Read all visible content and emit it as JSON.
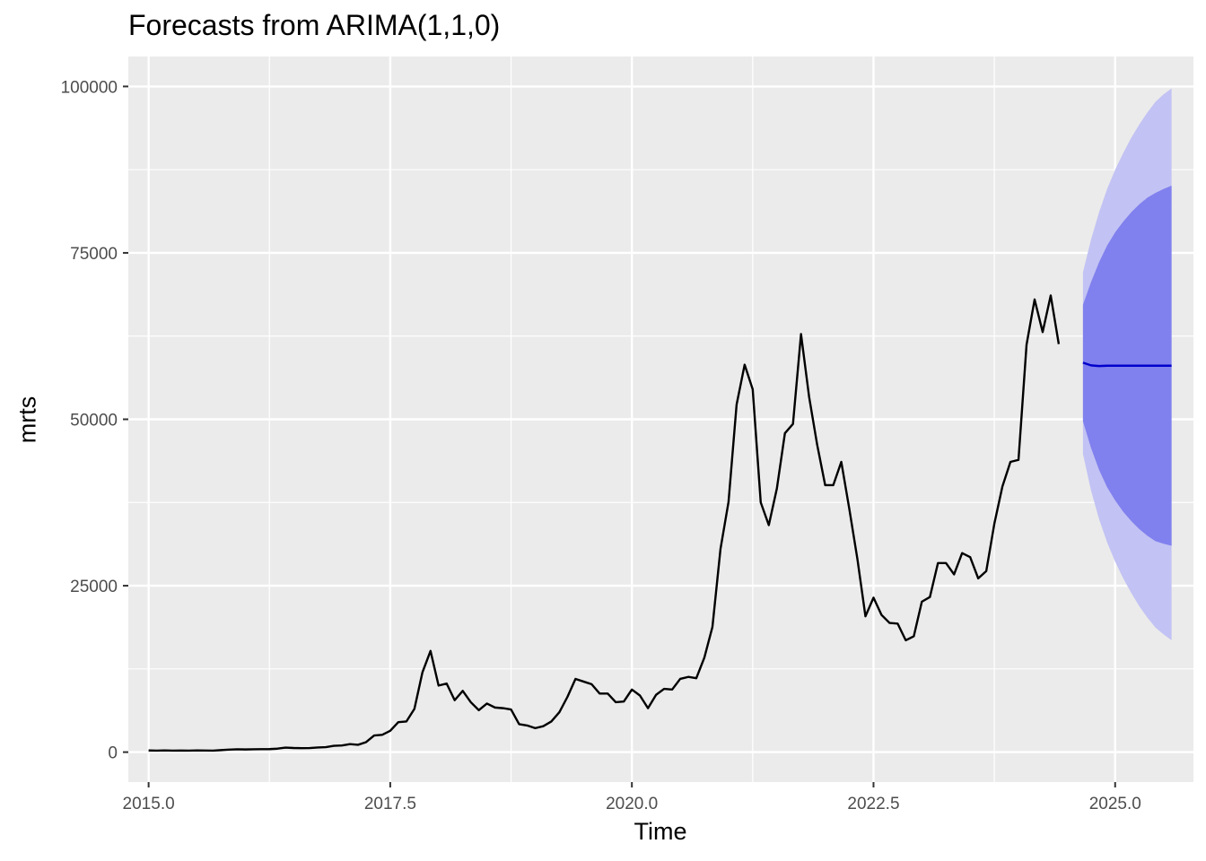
{
  "chart_data": {
    "type": "line",
    "title": "Forecasts from ARIMA(1,1,0)",
    "xlabel": "Time",
    "ylabel": "mrts",
    "xlim": [
      2014.79,
      2025.81
    ],
    "ylim": [
      -4500,
      104500
    ],
    "x_ticks": [
      2015.0,
      2017.5,
      2020.0,
      2022.5,
      2025.0
    ],
    "x_tick_labels": [
      "2015.0",
      "2017.5",
      "2020.0",
      "2022.5",
      "2025.0"
    ],
    "y_ticks": [
      0,
      25000,
      50000,
      75000,
      100000
    ],
    "y_tick_labels": [
      "0",
      "25000",
      "50000",
      "75000",
      "100000"
    ],
    "grid": true,
    "background": "#ebebeb",
    "colors": {
      "series": "#000000",
      "forecast": "#0000cc",
      "band80": "#8080ee",
      "band95": "#c2c2f4"
    },
    "series": [
      {
        "start": 2015.0,
        "step": 0.0833333,
        "values": [
          250,
          220,
          260,
          230,
          240,
          220,
          260,
          240,
          230,
          300,
          380,
          430,
          400,
          420,
          440,
          450,
          520,
          680,
          620,
          600,
          610,
          700,
          750,
          950,
          1000,
          1200,
          1100,
          1500,
          2500,
          2600,
          3200,
          4500,
          4600,
          6500,
          12000,
          15200,
          10000,
          10300,
          7800,
          9200,
          7500,
          6300,
          7300,
          6700,
          6600,
          6400,
          4200,
          4000,
          3600,
          3900,
          4600,
          6000,
          8300,
          11000,
          10600,
          10200,
          8800,
          8800,
          7500,
          7600,
          9400,
          8500,
          6600,
          8600,
          9500,
          9400,
          11000,
          11300,
          11100,
          14200,
          18800,
          30500,
          37600,
          52200,
          58200,
          54500,
          37500,
          34100,
          39600,
          47900,
          49300,
          62800,
          53400,
          46200,
          40100,
          40100,
          43600,
          36500,
          29000,
          20400,
          23200,
          20600,
          19400,
          19300,
          16800,
          17400,
          22600,
          23300,
          28400,
          28400,
          26700,
          29900,
          29300,
          26100,
          27200,
          34300,
          39900,
          43600,
          43900,
          61200,
          68000,
          63100,
          68600,
          61300
        ]
      }
    ],
    "forecast": {
      "start": 2024.667,
      "step": 0.0833333,
      "values": [
        58500,
        58100,
        58000,
        58050,
        58050,
        58050,
        58050,
        58050,
        58050,
        58050,
        58050,
        58050
      ],
      "lo80": [
        49700,
        45700,
        42400,
        39800,
        37800,
        36100,
        34700,
        33500,
        32500,
        31700,
        31300,
        31000
      ],
      "hi80": [
        67200,
        70600,
        73600,
        76100,
        78100,
        79700,
        81100,
        82300,
        83300,
        84000,
        84600,
        85100
      ],
      "lo95": [
        44800,
        39300,
        35000,
        31500,
        28600,
        26100,
        23900,
        21900,
        20200,
        18700,
        17700,
        16800
      ],
      "hi95": [
        72100,
        77000,
        81100,
        84600,
        87500,
        90000,
        92300,
        94300,
        96100,
        97700,
        98800,
        99700
      ]
    }
  }
}
